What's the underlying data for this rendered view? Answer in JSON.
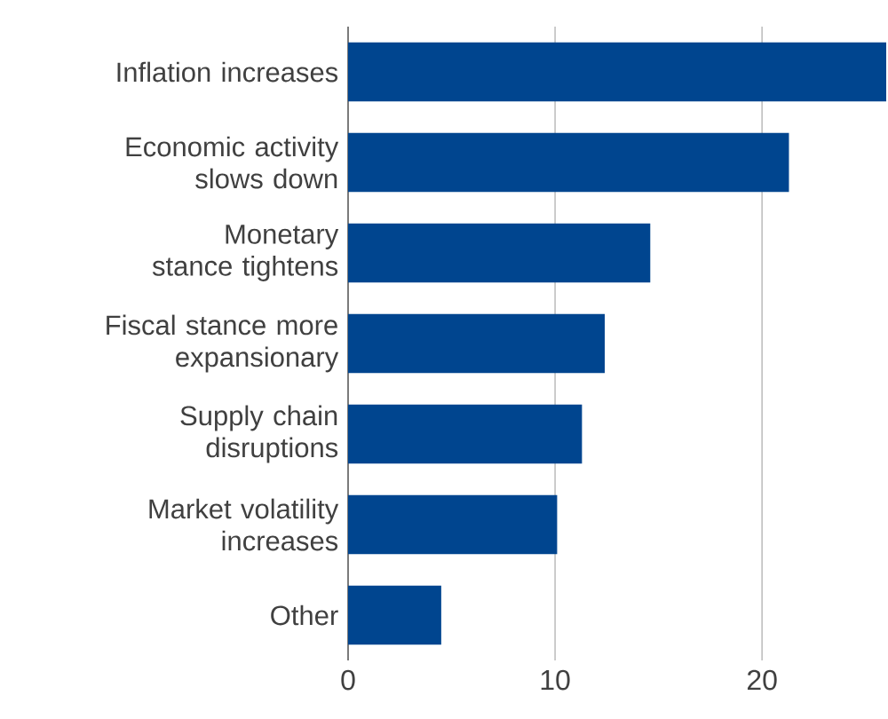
{
  "chart_data": {
    "type": "bar",
    "orientation": "horizontal",
    "categories": [
      "Inflation increases",
      "Economic activity slows down",
      "Monetary stance tightens",
      "Fiscal stance more expansionary",
      "Supply chain disruptions",
      "Market volatility increases",
      "Other"
    ],
    "values": [
      26,
      21.3,
      14.6,
      12.4,
      11.3,
      10.1,
      4.5
    ],
    "color": "#00458f",
    "xlim": [
      0,
      26
    ],
    "xticks": [
      0,
      10,
      20
    ],
    "grid": "x"
  }
}
